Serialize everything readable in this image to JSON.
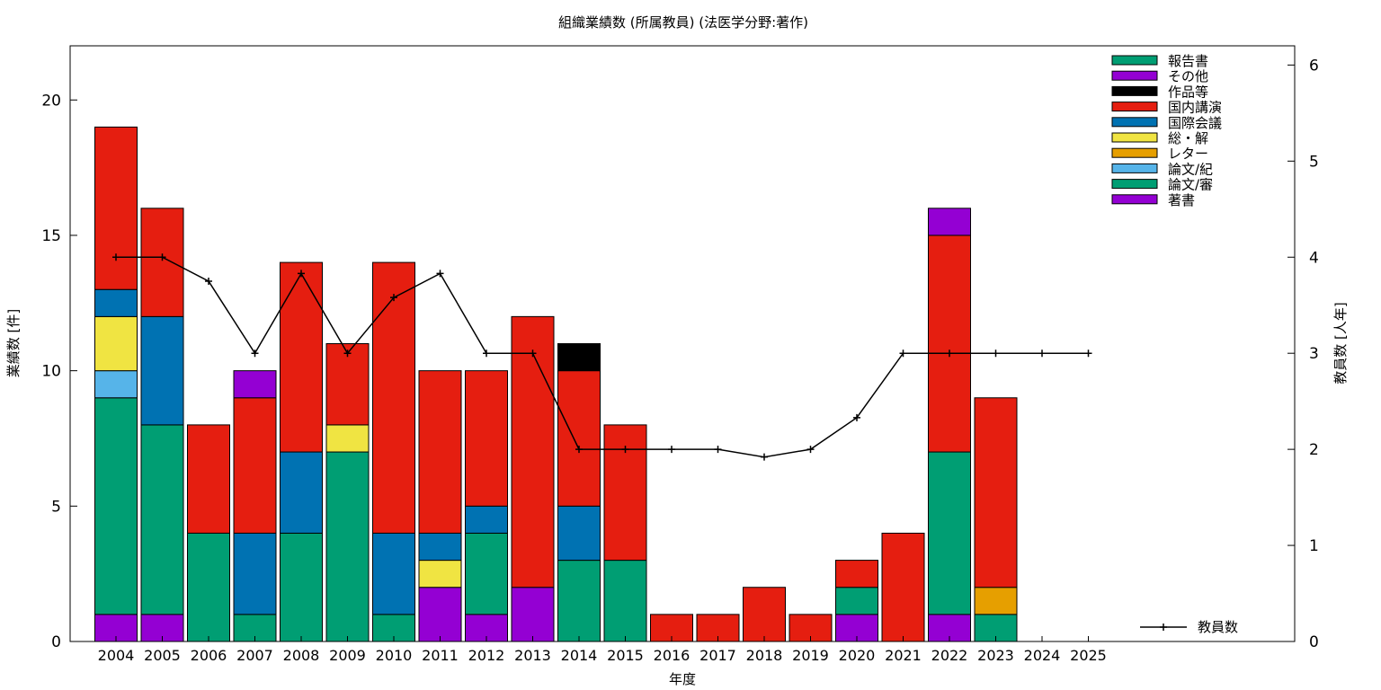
{
  "chart_data": {
    "type": "bar",
    "title": "組織業績数 (所属教員) (法医学分野:著作)",
    "xlabel": "年度",
    "ylabel": "業績数 [件]",
    "y2label": "教員数 [人年]",
    "ylim": [
      0,
      22
    ],
    "y2lim": [
      0,
      6.2
    ],
    "yticks": [
      0,
      5,
      10,
      15,
      20
    ],
    "y2ticks": [
      0,
      1,
      2,
      3,
      4,
      5,
      6
    ],
    "grid": false,
    "legend_position": "top-right",
    "categories": [
      "2004",
      "2005",
      "2006",
      "2007",
      "2008",
      "2009",
      "2010",
      "2011",
      "2012",
      "2013",
      "2014",
      "2015",
      "2016",
      "2017",
      "2018",
      "2019",
      "2020",
      "2021",
      "2022",
      "2023",
      "2024",
      "2025"
    ],
    "series": [
      {
        "name": "著書",
        "color": "#9400d3",
        "values": [
          1,
          1,
          0,
          0,
          0,
          0,
          0,
          2,
          1,
          2,
          0,
          0,
          0,
          0,
          0,
          0,
          1,
          0,
          1,
          0,
          0,
          0
        ]
      },
      {
        "name": "論文/審",
        "color": "#009e73",
        "values": [
          8,
          7,
          4,
          1,
          4,
          7,
          1,
          0,
          3,
          0,
          3,
          3,
          0,
          0,
          0,
          0,
          1,
          0,
          6,
          1,
          0,
          0
        ]
      },
      {
        "name": "論文/紀",
        "color": "#56b4e9",
        "values": [
          1,
          0,
          0,
          0,
          0,
          0,
          0,
          0,
          0,
          0,
          0,
          0,
          0,
          0,
          0,
          0,
          0,
          0,
          0,
          0,
          0,
          0
        ]
      },
      {
        "name": "レター",
        "color": "#e69f00",
        "values": [
          0,
          0,
          0,
          0,
          0,
          0,
          0,
          0,
          0,
          0,
          0,
          0,
          0,
          0,
          0,
          0,
          0,
          0,
          0,
          1,
          0,
          0
        ]
      },
      {
        "name": "総・解",
        "color": "#f0e442",
        "values": [
          2,
          0,
          0,
          0,
          0,
          1,
          0,
          1,
          0,
          0,
          0,
          0,
          0,
          0,
          0,
          0,
          0,
          0,
          0,
          0,
          0,
          0
        ]
      },
      {
        "name": "国際会議",
        "color": "#0072b2",
        "values": [
          1,
          4,
          0,
          3,
          3,
          0,
          3,
          1,
          1,
          0,
          2,
          0,
          0,
          0,
          0,
          0,
          0,
          0,
          0,
          0,
          0,
          0
        ]
      },
      {
        "name": "国内講演",
        "color": "#e51e10",
        "values": [
          6,
          4,
          4,
          5,
          7,
          3,
          10,
          6,
          5,
          10,
          5,
          5,
          1,
          1,
          2,
          1,
          1,
          4,
          8,
          7,
          0,
          0
        ]
      },
      {
        "name": "作品等",
        "color": "#000000",
        "values": [
          0,
          0,
          0,
          0,
          0,
          0,
          0,
          0,
          0,
          0,
          1,
          0,
          0,
          0,
          0,
          0,
          0,
          0,
          0,
          0,
          0,
          0
        ]
      },
      {
        "name": "その他",
        "color": "#9400d3",
        "values": [
          0,
          0,
          0,
          1,
          0,
          0,
          0,
          0,
          0,
          0,
          0,
          0,
          0,
          0,
          0,
          0,
          0,
          0,
          1,
          0,
          0,
          0
        ]
      },
      {
        "name": "報告書",
        "color": "#009e73",
        "values": [
          0,
          0,
          0,
          0,
          0,
          0,
          0,
          0,
          0,
          0,
          0,
          0,
          0,
          0,
          0,
          0,
          0,
          0,
          0,
          0,
          0,
          0
        ]
      }
    ],
    "line": {
      "name": "教員数",
      "axis": "y2",
      "values": [
        4,
        4,
        3.75,
        3,
        3.83,
        3,
        3.58,
        3.83,
        3,
        3,
        2,
        2,
        2,
        2,
        1.92,
        2,
        2.33,
        3,
        3,
        3,
        3,
        3
      ]
    }
  }
}
